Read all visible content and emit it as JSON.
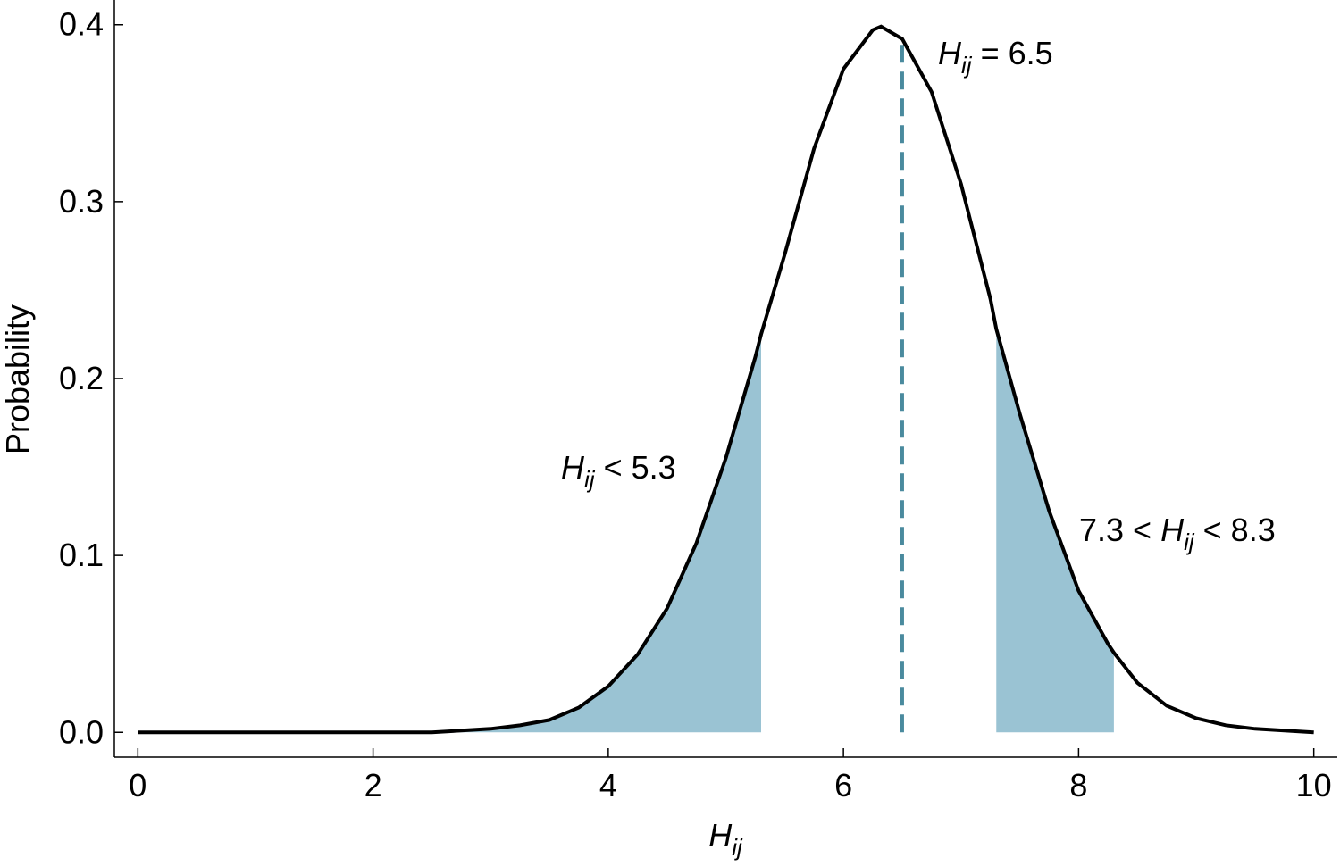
{
  "chart_data": {
    "type": "line",
    "y_label": "Probability",
    "x_label": {
      "symbol": "H",
      "subscript": "ij"
    },
    "x": [
      0,
      0.5,
      1,
      1.5,
      2,
      2.5,
      2.75,
      3,
      3.25,
      3.5,
      3.75,
      4,
      4.25,
      4.5,
      4.75,
      5,
      5.25,
      5.3,
      5.5,
      5.75,
      6,
      6.25,
      6.32,
      6.5,
      6.75,
      7,
      7.25,
      7.3,
      7.5,
      7.75,
      8,
      8.25,
      8.3,
      8.5,
      8.75,
      9,
      9.25,
      9.5,
      10
    ],
    "y": [
      0,
      0,
      0,
      0,
      0,
      0,
      0.001,
      0.002,
      0.004,
      0.007,
      0.014,
      0.026,
      0.044,
      0.07,
      0.107,
      0.155,
      0.212,
      0.225,
      0.27,
      0.33,
      0.375,
      0.397,
      0.399,
      0.392,
      0.362,
      0.31,
      0.245,
      0.228,
      0.18,
      0.125,
      0.08,
      0.05,
      0.045,
      0.028,
      0.015,
      0.008,
      0.004,
      0.002,
      0
    ],
    "color": "#000000",
    "shade_color": "#9ac3d3",
    "shaded_regions": [
      [
        0,
        5.3
      ],
      [
        7.3,
        8.3
      ]
    ],
    "marker": {
      "x": 6.5,
      "color": "#4a8a9e"
    },
    "annotations": [
      {
        "prefix": "",
        "symbol": "H",
        "subscript": "ij",
        "suffix": " = 6.5"
      },
      {
        "prefix": "",
        "symbol": "H",
        "subscript": "ij",
        "suffix": " < 5.3"
      },
      {
        "prefix": "7.3 < ",
        "symbol": "H",
        "subscript": "ij",
        "suffix": " < 8.3"
      }
    ],
    "xlim": [
      -0.2,
      10.2
    ],
    "ylim": [
      -0.014,
      0.414
    ],
    "xticks": [
      0,
      2,
      4,
      6,
      8,
      10
    ],
    "yticks": [
      {
        "value": 0,
        "label": "0.0"
      },
      {
        "value": 0.1,
        "label": "0.1"
      },
      {
        "value": 0.2,
        "label": "0.2"
      },
      {
        "value": 0.3,
        "label": "0.3"
      },
      {
        "value": 0.4,
        "label": "0.4"
      }
    ]
  }
}
